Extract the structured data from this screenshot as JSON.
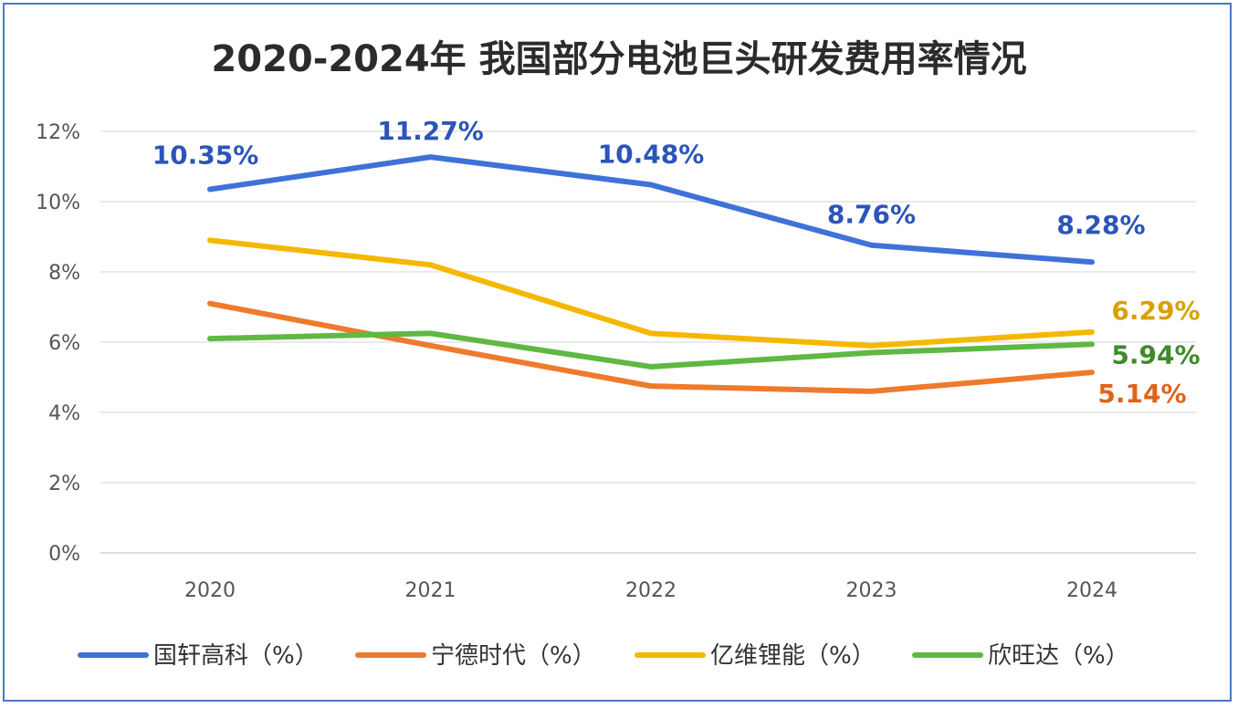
{
  "chart_data": {
    "type": "line",
    "title": "2020-2024年 我国部分电池巨头研发费用率情况",
    "categories": [
      "2020",
      "2021",
      "2022",
      "2023",
      "2024"
    ],
    "ylim": [
      0,
      12
    ],
    "yticks": [
      "0%",
      "2%",
      "4%",
      "6%",
      "8%",
      "10%",
      "12%"
    ],
    "grid": true,
    "legend_position": "bottom",
    "series": [
      {
        "name": "国轩高科（%）",
        "color": "#3f72d8",
        "values": [
          10.35,
          11.27,
          10.48,
          8.76,
          8.28
        ],
        "labels": [
          "10.35%",
          "11.27%",
          "10.48%",
          "8.76%",
          "8.28%"
        ],
        "label_color": "#2b55b8"
      },
      {
        "name": "宁德时代（%）",
        "color": "#f07a2c",
        "values": [
          7.1,
          5.9,
          4.75,
          4.6,
          5.14
        ],
        "labels": [
          "",
          "",
          "",
          "",
          "5.14%"
        ],
        "label_color": "#e0631c"
      },
      {
        "name": "亿维锂能（%）",
        "color": "#f5b800",
        "values": [
          8.9,
          8.2,
          6.25,
          5.9,
          6.29
        ],
        "labels": [
          "",
          "",
          "",
          "",
          "6.29%"
        ],
        "label_color": "#d9a100"
      },
      {
        "name": "欣旺达（%）",
        "color": "#5fb843",
        "values": [
          6.1,
          6.25,
          5.3,
          5.7,
          5.94
        ],
        "labels": [
          "",
          "",
          "",
          "",
          "5.94%"
        ],
        "label_color": "#3f8a2a"
      }
    ]
  }
}
